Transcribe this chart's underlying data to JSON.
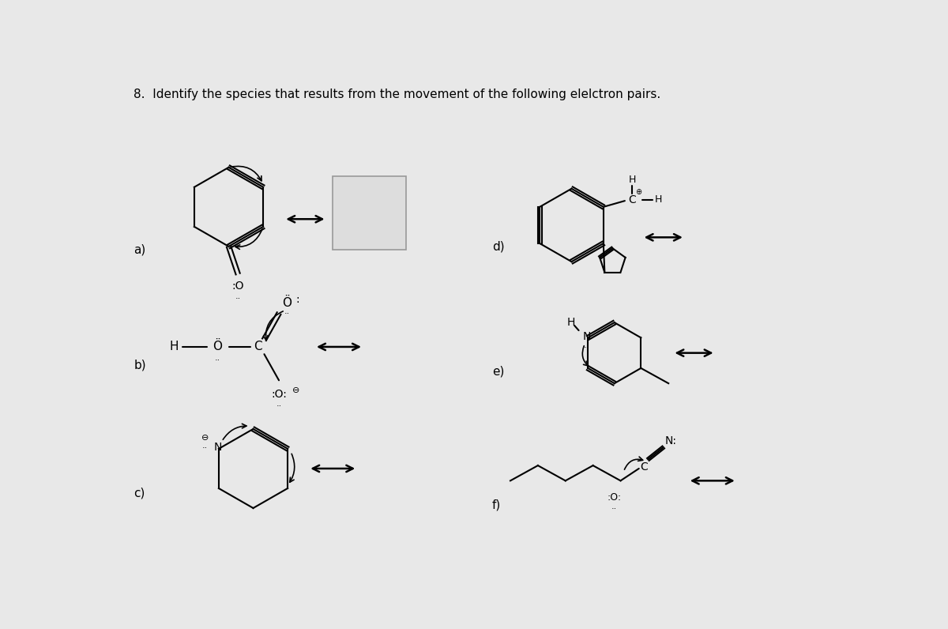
{
  "title": "8.  Identify the species that results from the movement of the following elelctron pairs.",
  "background_color": "#e8e8e8",
  "text_color": "#000000",
  "labels": [
    "a)",
    "b)",
    "c)",
    "d)",
    "e)",
    "f)"
  ]
}
